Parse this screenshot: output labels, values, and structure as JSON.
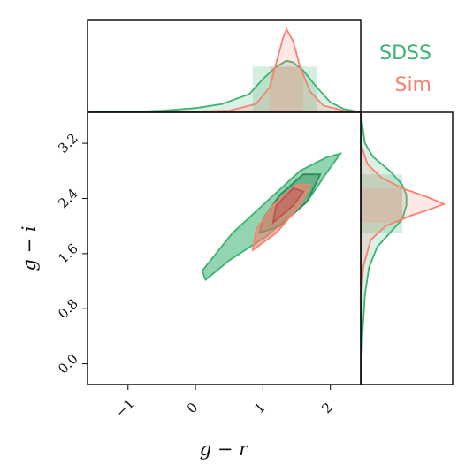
{
  "chart_data": {
    "type": "corner-kde",
    "xlabel": "g − r",
    "ylabel": "g − i",
    "xlim": [
      -1.6,
      2.45
    ],
    "ylim": [
      -0.3,
      3.65
    ],
    "x_ticks": [
      {
        "v": -1,
        "label": "−1"
      },
      {
        "v": 0,
        "label": "0"
      },
      {
        "v": 1,
        "label": "1"
      },
      {
        "v": 2,
        "label": "2"
      }
    ],
    "y_ticks": [
      {
        "v": 0.0,
        "label": "0.0"
      },
      {
        "v": 0.8,
        "label": "0.8"
      },
      {
        "v": 1.6,
        "label": "1.6"
      },
      {
        "v": 2.4,
        "label": "2.4"
      },
      {
        "v": 3.2,
        "label": "3.2"
      }
    ],
    "colors": {
      "SDSS": "#3cb371",
      "Sim": "#fa8072"
    },
    "series": [
      {
        "name": "SDSS",
        "contours_gr_gi": [
          [
            [
              0.15,
              1.22
            ],
            [
              0.5,
              1.5
            ],
            [
              1.05,
              1.85
            ],
            [
              1.65,
              2.35
            ],
            [
              2.0,
              2.85
            ],
            [
              2.15,
              3.05
            ],
            [
              1.95,
              3.0
            ],
            [
              1.55,
              2.8
            ],
            [
              1.05,
              2.35
            ],
            [
              0.55,
              1.9
            ],
            [
              0.1,
              1.35
            ]
          ],
          [
            [
              0.95,
              1.9
            ],
            [
              1.25,
              2.0
            ],
            [
              1.65,
              2.35
            ],
            [
              1.85,
              2.75
            ],
            [
              1.6,
              2.75
            ],
            [
              1.25,
              2.45
            ],
            [
              1.0,
              2.1
            ]
          ]
        ],
        "marginal_gr": {
          "x": [
            -1.6,
            -1.0,
            -0.5,
            0.0,
            0.4,
            0.8,
            1.0,
            1.2,
            1.35,
            1.45,
            1.6,
            1.8,
            2.0,
            2.2,
            2.4
          ],
          "density": [
            0.0,
            0.005,
            0.02,
            0.05,
            0.1,
            0.22,
            0.4,
            0.55,
            0.62,
            0.6,
            0.5,
            0.3,
            0.12,
            0.04,
            0.01
          ]
        },
        "marginal_gi": {
          "y": [
            -0.3,
            0.4,
            1.0,
            1.4,
            1.7,
            1.9,
            2.1,
            2.3,
            2.45,
            2.6,
            2.8,
            3.0,
            3.2,
            3.65
          ],
          "density": [
            0.0,
            0.02,
            0.05,
            0.1,
            0.2,
            0.35,
            0.5,
            0.55,
            0.55,
            0.5,
            0.35,
            0.15,
            0.05,
            0.0
          ]
        },
        "box_gr": [
          0.85,
          1.8
        ],
        "box_gi": [
          1.9,
          2.75
        ]
      },
      {
        "name": "Sim",
        "contours_gr_gi": [
          [
            [
              0.85,
              1.65
            ],
            [
              1.2,
              1.9
            ],
            [
              1.55,
              2.3
            ],
            [
              1.7,
              2.6
            ],
            [
              1.5,
              2.6
            ],
            [
              1.15,
              2.3
            ],
            [
              0.9,
              1.95
            ]
          ],
          [
            [
              1.15,
              2.05
            ],
            [
              1.45,
              2.3
            ],
            [
              1.6,
              2.5
            ],
            [
              1.45,
              2.55
            ],
            [
              1.2,
              2.3
            ]
          ]
        ],
        "marginal_gr": {
          "x": [
            -0.5,
            0.5,
            0.9,
            1.1,
            1.2,
            1.3,
            1.35,
            1.45,
            1.55,
            1.7,
            1.9,
            2.2,
            2.45
          ],
          "density": [
            0.0,
            0.02,
            0.1,
            0.3,
            0.6,
            0.9,
            1.0,
            0.85,
            0.55,
            0.25,
            0.08,
            0.02,
            0.0
          ]
        },
        "marginal_gi": {
          "y": [
            0.8,
            1.4,
            1.8,
            2.0,
            2.15,
            2.25,
            2.32,
            2.42,
            2.55,
            2.7,
            2.9,
            3.2
          ],
          "density": [
            0.0,
            0.03,
            0.12,
            0.3,
            0.6,
            0.85,
            1.0,
            0.8,
            0.5,
            0.25,
            0.08,
            0.0
          ]
        },
        "box_gr": [
          1.1,
          1.6
        ],
        "box_gi": [
          2.05,
          2.55
        ]
      }
    ],
    "legend": [
      "SDSS",
      "Sim"
    ],
    "legend_position": "top-right"
  }
}
